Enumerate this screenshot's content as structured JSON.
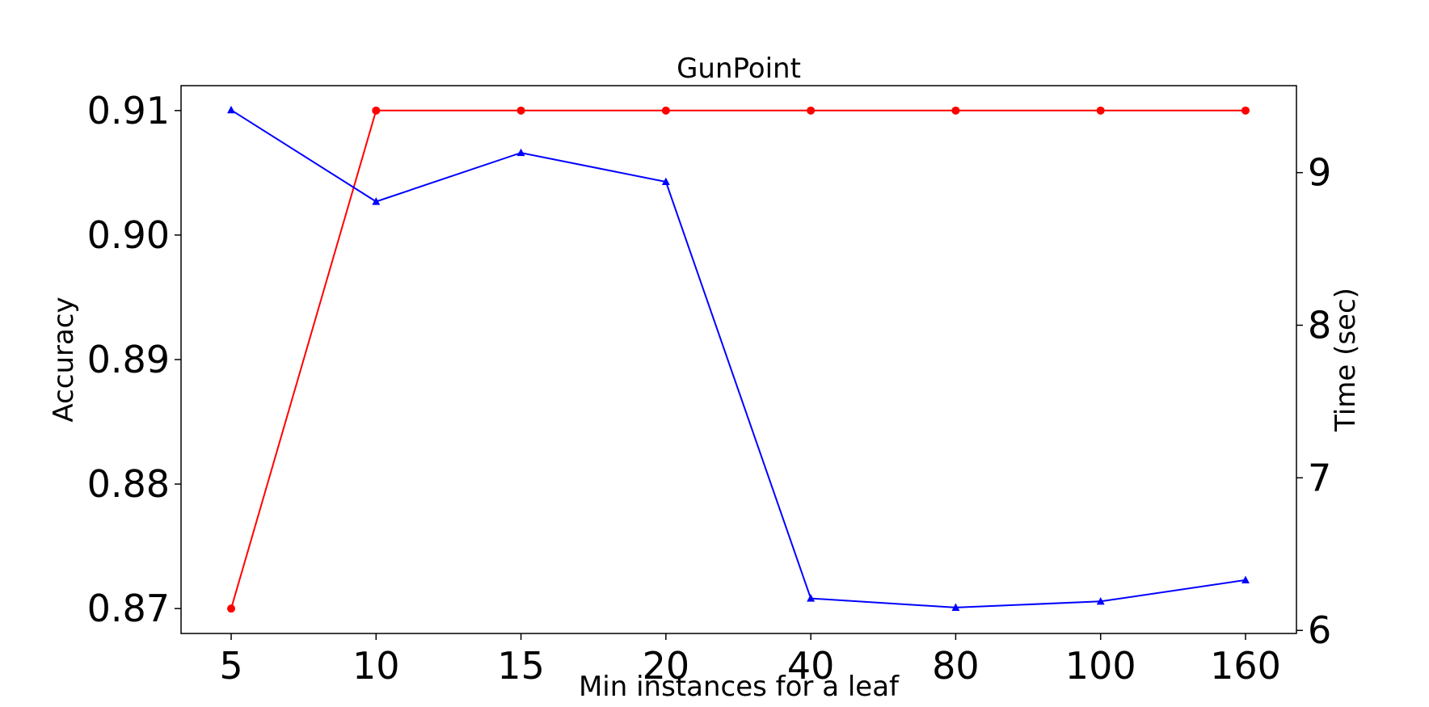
{
  "chart_data": {
    "type": "line",
    "title": "GunPoint",
    "xlabel": "Min instances for a leaf",
    "ylabel_left": "Accuracy",
    "ylabel_right": "Time (sec)",
    "categories": [
      "5",
      "10",
      "15",
      "20",
      "40",
      "80",
      "100",
      "160"
    ],
    "y_left": {
      "ticks": [
        "0.87",
        "0.88",
        "0.89",
        "0.90",
        "0.91"
      ],
      "tick_values": [
        0.87,
        0.88,
        0.89,
        0.9,
        0.91
      ],
      "range": [
        0.868,
        0.912
      ]
    },
    "y_right": {
      "ticks": [
        "6",
        "7",
        "8",
        "9"
      ],
      "tick_values": [
        6,
        7,
        8,
        9
      ],
      "range": [
        5.98,
        9.57
      ]
    },
    "grid": false,
    "series": [
      {
        "axis": "left",
        "color": "#ff0000",
        "marker": "circle",
        "values": [
          0.87,
          0.91,
          0.91,
          0.91,
          0.91,
          0.91,
          0.91,
          0.91
        ]
      },
      {
        "axis": "right",
        "color": "#0000ff",
        "marker": "triangle",
        "values": [
          9.41,
          8.81,
          9.13,
          8.94,
          6.21,
          6.15,
          6.19,
          6.33
        ]
      }
    ]
  }
}
